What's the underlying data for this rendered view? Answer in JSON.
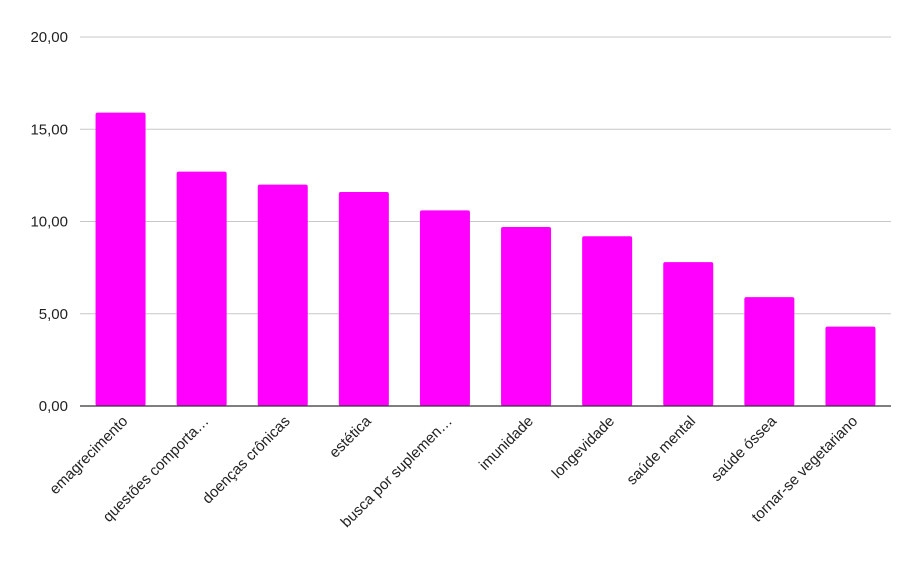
{
  "chart_data": {
    "type": "bar",
    "title": "",
    "xlabel": "",
    "ylabel": "",
    "ylim": [
      0,
      20
    ],
    "yticks": [
      0,
      5,
      10,
      15,
      20
    ],
    "ytick_labels": [
      "0,00",
      "5,00",
      "10,00",
      "15,00",
      "20,00"
    ],
    "grid": true,
    "bar_color": "#ff00ff",
    "categories": [
      "emagrecimento",
      "questões comporta…",
      "doenças crônicas",
      "estética",
      "busca por suplemen…",
      "imunidade",
      "longevidade",
      "saúde mental",
      "saúde óssea",
      "tornar-se vegetariano"
    ],
    "values": [
      15.9,
      12.7,
      12.0,
      11.6,
      10.6,
      9.7,
      9.2,
      7.8,
      5.9,
      4.3
    ]
  }
}
